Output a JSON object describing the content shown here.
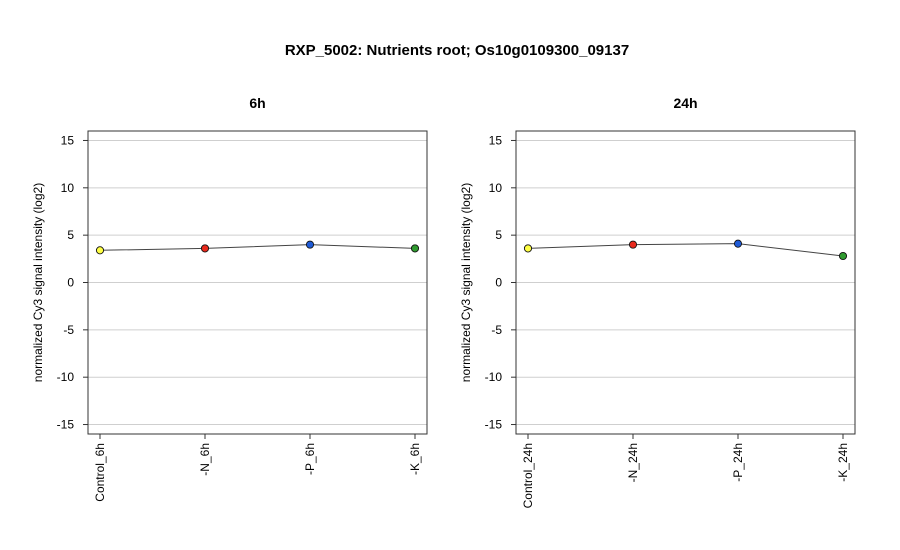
{
  "title": "RXP_5002: Nutrients root; Os10g0109300_09137",
  "chart_data": [
    {
      "type": "line",
      "title": "6h",
      "ylabel": "normalized Cy3 signal intensity (log2)",
      "ylim": [
        -16,
        16
      ],
      "yticks": [
        -15,
        -10,
        -5,
        0,
        5,
        10,
        15
      ],
      "yticks_text": [
        "-15",
        "-10",
        "-5",
        "0",
        "5",
        "10",
        "15"
      ],
      "grid": true,
      "categories": [
        "Control_6h",
        "-N_6h",
        "-P_6h",
        "-K_6h"
      ],
      "values": [
        3.4,
        3.6,
        4.0,
        3.6
      ],
      "point_colors": [
        "#ffff44",
        "#e8291c",
        "#1f5bd6",
        "#2f9a2f"
      ]
    },
    {
      "type": "line",
      "title": "24h",
      "ylabel": "normalized Cy3 signal intensity (log2)",
      "ylim": [
        -16,
        16
      ],
      "yticks": [
        -15,
        -10,
        -5,
        0,
        5,
        10,
        15
      ],
      "yticks_text": [
        "-15",
        "-10",
        "-5",
        "0",
        "5",
        "10",
        "15"
      ],
      "grid": true,
      "categories": [
        "Control_24h",
        "-N_24h",
        "-P_24h",
        "-K_24h"
      ],
      "values": [
        3.6,
        4.0,
        4.1,
        2.8
      ],
      "point_colors": [
        "#ffff44",
        "#e8291c",
        "#1f5bd6",
        "#2f9a2f"
      ]
    }
  ]
}
